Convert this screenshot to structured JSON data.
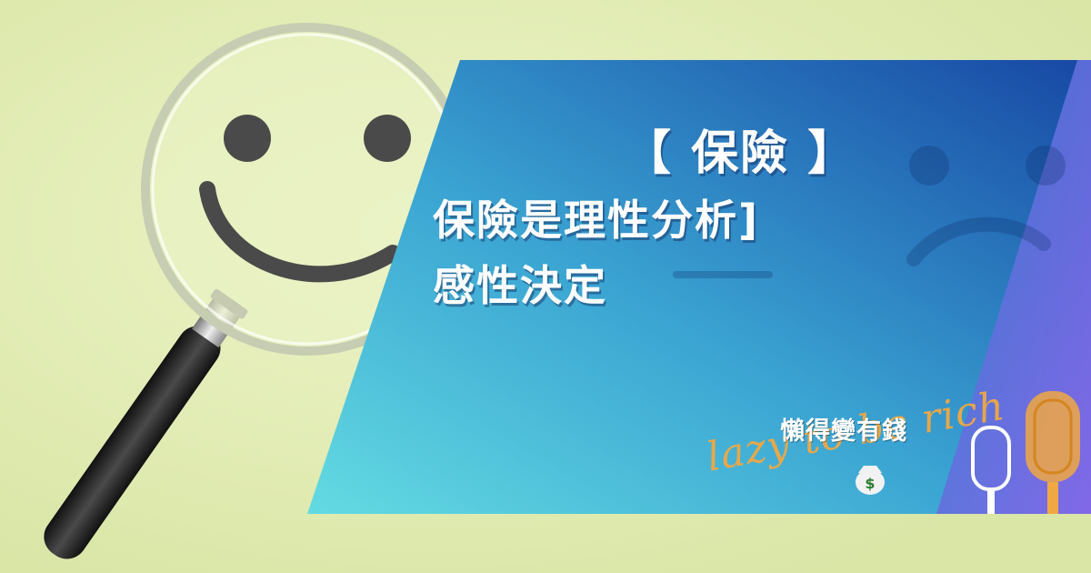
{
  "headline": {
    "line1": "【 保險 】",
    "line2": "保險是理性分析]",
    "line3": "感性決定"
  },
  "brand": {
    "name_zh": "懶得變有錢",
    "name_en": "lazy to be rich"
  },
  "colors": {
    "background": "#e3ecb4",
    "panel_start": "#5fd8e0",
    "panel_mid": "#2c8dc8",
    "panel_end": "#1a52a8",
    "accent_stripe": "#7b5fe0",
    "smiley": "#4a4a4a",
    "script_text": "#f0a843"
  },
  "icons": [
    "magnifying-glass-icon",
    "smiley-face-icon",
    "sad-face-icon",
    "money-bag-icon",
    "microphone-icon"
  ]
}
